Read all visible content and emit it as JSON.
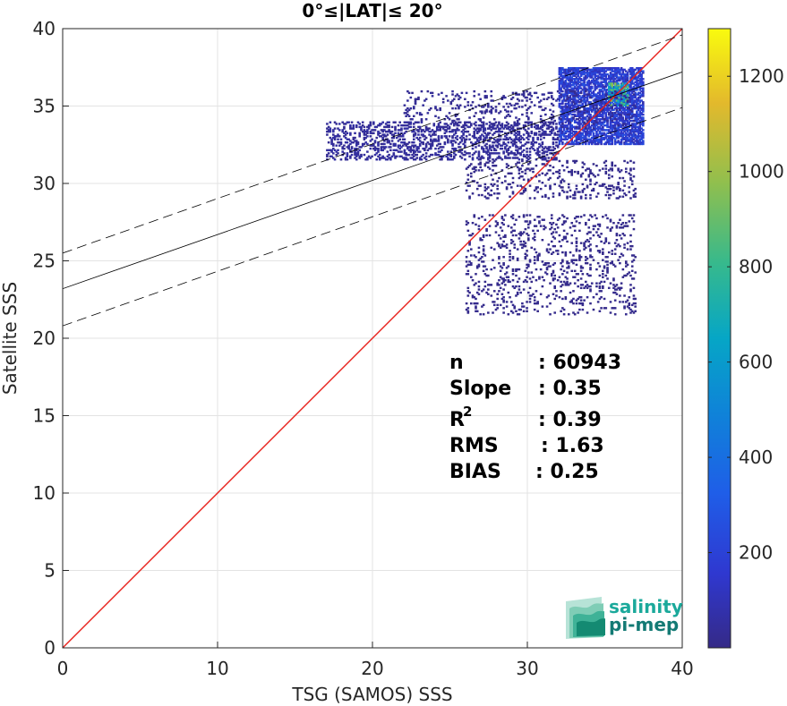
{
  "chart_data": {
    "type": "scatter",
    "title": "0°≤|LAT|≤ 20°",
    "xlabel": "TSG (SAMOS) SSS",
    "ylabel": "Satellite SSS",
    "xlim": [
      0,
      40
    ],
    "ylim": [
      0,
      40
    ],
    "xticks": [
      0,
      10,
      20,
      30,
      40
    ],
    "yticks": [
      0,
      5,
      10,
      15,
      20,
      25,
      30,
      35,
      40
    ],
    "grid": true,
    "colorbar": {
      "min": 0,
      "max": 1300,
      "ticks": [
        200,
        400,
        600,
        800,
        1000,
        1200
      ],
      "colormap": "parula"
    },
    "lines": [
      {
        "role": "identity",
        "x": [
          0,
          40
        ],
        "y": [
          0,
          40
        ],
        "color": "#e8211c"
      },
      {
        "role": "regression",
        "x": [
          0,
          40
        ],
        "y": [
          23.2,
          37.2
        ],
        "color": "#000000"
      },
      {
        "role": "regression-upper",
        "x": [
          0,
          40
        ],
        "y": [
          25.5,
          39.6
        ],
        "color": "#000000"
      },
      {
        "role": "regression-lower",
        "x": [
          0,
          40
        ],
        "y": [
          20.8,
          34.9
        ],
        "color": "#000000"
      }
    ],
    "density_clusters": [
      {
        "x": [
          32,
          37.5
        ],
        "y": [
          32.5,
          37.5
        ],
        "level": 250
      },
      {
        "x": [
          35.2,
          36.5
        ],
        "y": [
          35.0,
          36.5
        ],
        "level": 900
      },
      {
        "x": [
          17,
          32
        ],
        "y": [
          31.5,
          34
        ],
        "level": 60
      },
      {
        "x": [
          22,
          37
        ],
        "y": [
          33.5,
          36
        ],
        "level": 40
      },
      {
        "x": [
          26,
          37
        ],
        "y": [
          29,
          31.5
        ],
        "level": 20
      },
      {
        "x": [
          26,
          37
        ],
        "y": [
          21.5,
          28
        ],
        "level": 15
      }
    ],
    "stats": [
      {
        "label": "n",
        "value": ": 60943"
      },
      {
        "label": "Slope",
        "value": ": 0.35"
      },
      {
        "label": "R",
        "sup": "2",
        "value": ": 0.39"
      },
      {
        "label": "RMS",
        "value": ": 1.63"
      },
      {
        "label": "BIAS",
        "value": ": 0.25"
      }
    ]
  },
  "logo": {
    "line1": "salinity",
    "line2": "pi-mep",
    "color": "#1ba99b"
  }
}
